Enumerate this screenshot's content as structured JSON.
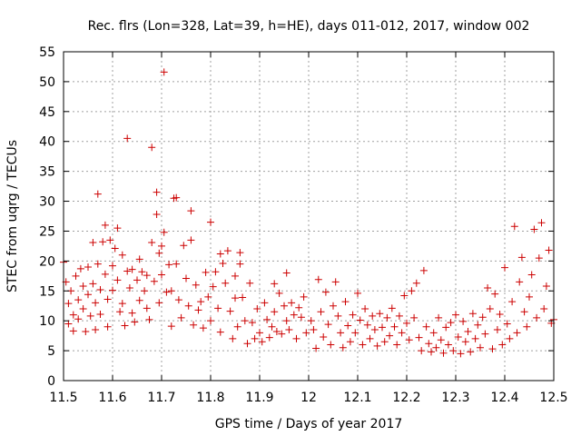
{
  "chart_data": {
    "type": "scatter",
    "title": "Rec. flrs (Lon=328, Lat=39, h=HE), days 011-012, 2017, window 002",
    "xlabel": "GPS time / Days of year 2017",
    "ylabel": "STEC from uqrg / TECUs",
    "xlim": [
      11.5,
      12.5
    ],
    "ylim": [
      0,
      55
    ],
    "xticks": [
      11.5,
      11.6,
      11.7,
      11.8,
      11.9,
      12.0,
      12.1,
      12.2,
      12.3,
      12.4,
      12.5
    ],
    "xtick_labels": [
      "11.5",
      "11.6",
      "11.7",
      "11.8",
      "11.9",
      "12",
      "12.1",
      "12.2",
      "12.3",
      "12.4",
      "12.5"
    ],
    "yticks": [
      0,
      5,
      10,
      15,
      20,
      25,
      30,
      35,
      40,
      45,
      50,
      55
    ],
    "ytick_labels": [
      "0",
      "5",
      "10",
      "15",
      "20",
      "25",
      "30",
      "35",
      "40",
      "45",
      "50",
      "55"
    ],
    "grid": true,
    "marker": "+",
    "series": [
      {
        "name": "STEC",
        "color": "#cc0000",
        "points": [
          [
            11.5,
            19.8
          ],
          [
            11.505,
            16.5
          ],
          [
            11.51,
            12.9
          ],
          [
            11.51,
            9.5
          ],
          [
            11.515,
            15.0
          ],
          [
            11.52,
            11.0
          ],
          [
            11.52,
            8.3
          ],
          [
            11.525,
            17.5
          ],
          [
            11.53,
            13.5
          ],
          [
            11.53,
            10.3
          ],
          [
            11.535,
            18.7
          ],
          [
            11.54,
            15.8
          ],
          [
            11.54,
            12.0
          ],
          [
            11.545,
            8.2
          ],
          [
            11.55,
            19.0
          ],
          [
            11.55,
            14.4
          ],
          [
            11.555,
            10.8
          ],
          [
            11.56,
            23.1
          ],
          [
            11.56,
            16.2
          ],
          [
            11.565,
            13.0
          ],
          [
            11.565,
            8.5
          ],
          [
            11.57,
            31.2
          ],
          [
            11.57,
            19.5
          ],
          [
            11.575,
            15.2
          ],
          [
            11.575,
            11.1
          ],
          [
            11.58,
            23.2
          ],
          [
            11.585,
            26.0
          ],
          [
            11.585,
            17.8
          ],
          [
            11.59,
            13.6
          ],
          [
            11.59,
            9.0
          ],
          [
            11.595,
            23.5
          ],
          [
            11.6,
            19.2
          ],
          [
            11.6,
            15.1
          ],
          [
            11.605,
            22.1
          ],
          [
            11.61,
            25.5
          ],
          [
            11.61,
            16.8
          ],
          [
            11.615,
            11.5
          ],
          [
            11.62,
            21.0
          ],
          [
            11.62,
            12.9
          ],
          [
            11.625,
            9.2
          ],
          [
            11.63,
            40.5
          ],
          [
            11.63,
            18.3
          ],
          [
            11.635,
            15.5
          ],
          [
            11.64,
            18.6
          ],
          [
            11.64,
            11.3
          ],
          [
            11.645,
            9.8
          ],
          [
            11.65,
            16.8
          ],
          [
            11.655,
            20.3
          ],
          [
            11.655,
            13.4
          ],
          [
            11.66,
            18.2
          ],
          [
            11.665,
            15.0
          ],
          [
            11.67,
            17.6
          ],
          [
            11.67,
            12.1
          ],
          [
            11.675,
            10.2
          ],
          [
            11.68,
            39.0
          ],
          [
            11.68,
            23.1
          ],
          [
            11.685,
            16.6
          ],
          [
            11.69,
            31.5
          ],
          [
            11.69,
            27.8
          ],
          [
            11.695,
            21.3
          ],
          [
            11.695,
            13.0
          ],
          [
            11.7,
            22.5
          ],
          [
            11.7,
            17.7
          ],
          [
            11.705,
            24.8
          ],
          [
            11.705,
            51.6
          ],
          [
            11.71,
            14.8
          ],
          [
            11.715,
            19.4
          ],
          [
            11.72,
            15.0
          ],
          [
            11.72,
            9.1
          ],
          [
            11.725,
            30.5
          ],
          [
            11.73,
            30.6
          ],
          [
            11.73,
            19.5
          ],
          [
            11.735,
            13.5
          ],
          [
            11.74,
            10.5
          ],
          [
            11.745,
            22.6
          ],
          [
            11.75,
            17.1
          ],
          [
            11.755,
            12.5
          ],
          [
            11.76,
            28.4
          ],
          [
            11.76,
            23.5
          ],
          [
            11.765,
            9.3
          ],
          [
            11.77,
            16.0
          ],
          [
            11.775,
            11.8
          ],
          [
            11.78,
            13.2
          ],
          [
            11.785,
            8.8
          ],
          [
            11.79,
            18.1
          ],
          [
            11.795,
            14.0
          ],
          [
            11.8,
            26.5
          ],
          [
            11.8,
            10.0
          ],
          [
            11.805,
            15.7
          ],
          [
            11.81,
            18.2
          ],
          [
            11.815,
            12.1
          ],
          [
            11.82,
            21.2
          ],
          [
            11.82,
            8.1
          ],
          [
            11.825,
            19.6
          ],
          [
            11.83,
            16.3
          ],
          [
            11.835,
            21.7
          ],
          [
            11.84,
            11.6
          ],
          [
            11.845,
            7.0
          ],
          [
            11.85,
            17.5
          ],
          [
            11.85,
            13.8
          ],
          [
            11.855,
            9.0
          ],
          [
            11.86,
            21.4
          ],
          [
            11.86,
            19.5
          ],
          [
            11.865,
            13.9
          ],
          [
            11.87,
            10.0
          ],
          [
            11.875,
            6.2
          ],
          [
            11.88,
            16.3
          ],
          [
            11.885,
            9.7
          ],
          [
            11.89,
            7.0
          ],
          [
            11.895,
            12.0
          ],
          [
            11.9,
            8.0
          ],
          [
            11.905,
            6.5
          ],
          [
            11.91,
            13.0
          ],
          [
            11.915,
            10.2
          ],
          [
            11.92,
            7.2
          ],
          [
            11.925,
            9.0
          ],
          [
            11.93,
            16.2
          ],
          [
            11.93,
            11.5
          ],
          [
            11.935,
            8.2
          ],
          [
            11.94,
            14.6
          ],
          [
            11.945,
            7.8
          ],
          [
            11.95,
            12.5
          ],
          [
            11.955,
            18.0
          ],
          [
            11.955,
            10.0
          ],
          [
            11.96,
            8.5
          ],
          [
            11.965,
            13.0
          ],
          [
            11.97,
            11.0
          ],
          [
            11.975,
            7.0
          ],
          [
            11.98,
            12.2
          ],
          [
            11.985,
            10.6
          ],
          [
            11.99,
            14.0
          ],
          [
            11.995,
            8.0
          ],
          [
            12.005,
            10.0
          ],
          [
            12.01,
            8.5
          ],
          [
            12.015,
            5.4
          ],
          [
            12.02,
            16.9
          ],
          [
            12.025,
            11.5
          ],
          [
            12.03,
            7.3
          ],
          [
            12.035,
            14.8
          ],
          [
            12.04,
            9.4
          ],
          [
            12.045,
            6.0
          ],
          [
            12.05,
            12.5
          ],
          [
            12.055,
            16.5
          ],
          [
            12.06,
            10.8
          ],
          [
            12.065,
            8.0
          ],
          [
            12.07,
            5.5
          ],
          [
            12.075,
            13.2
          ],
          [
            12.08,
            9.2
          ],
          [
            12.085,
            6.5
          ],
          [
            12.09,
            11.0
          ],
          [
            12.095,
            8.0
          ],
          [
            12.1,
            14.6
          ],
          [
            12.105,
            10.1
          ],
          [
            12.11,
            6.0
          ],
          [
            12.115,
            12.0
          ],
          [
            12.12,
            9.3
          ],
          [
            12.125,
            7.0
          ],
          [
            12.13,
            10.8
          ],
          [
            12.135,
            8.5
          ],
          [
            12.14,
            5.8
          ],
          [
            12.145,
            11.2
          ],
          [
            12.15,
            8.9
          ],
          [
            12.155,
            6.5
          ],
          [
            12.16,
            10.5
          ],
          [
            12.165,
            7.5
          ],
          [
            12.17,
            12.1
          ],
          [
            12.175,
            9.0
          ],
          [
            12.18,
            6.0
          ],
          [
            12.185,
            10.8
          ],
          [
            12.19,
            8.0
          ],
          [
            12.195,
            14.2
          ],
          [
            12.2,
            9.6
          ],
          [
            12.205,
            6.8
          ],
          [
            12.21,
            15.0
          ],
          [
            12.215,
            10.5
          ],
          [
            12.22,
            16.3
          ],
          [
            12.225,
            7.2
          ],
          [
            12.23,
            5.0
          ],
          [
            12.235,
            18.4
          ],
          [
            12.24,
            9.0
          ],
          [
            12.245,
            6.2
          ],
          [
            12.25,
            4.8
          ],
          [
            12.255,
            8.0
          ],
          [
            12.26,
            5.5
          ],
          [
            12.265,
            10.5
          ],
          [
            12.27,
            6.8
          ],
          [
            12.275,
            4.6
          ],
          [
            12.28,
            8.9
          ],
          [
            12.285,
            6.0
          ],
          [
            12.29,
            9.7
          ],
          [
            12.295,
            5.0
          ],
          [
            12.3,
            11.0
          ],
          [
            12.305,
            7.3
          ],
          [
            12.31,
            4.5
          ],
          [
            12.315,
            9.9
          ],
          [
            12.32,
            6.5
          ],
          [
            12.325,
            8.2
          ],
          [
            12.33,
            4.8
          ],
          [
            12.335,
            11.2
          ],
          [
            12.34,
            7.0
          ],
          [
            12.345,
            9.3
          ],
          [
            12.35,
            5.5
          ],
          [
            12.355,
            10.6
          ],
          [
            12.36,
            7.8
          ],
          [
            12.365,
            15.5
          ],
          [
            12.37,
            12.0
          ],
          [
            12.375,
            5.3
          ],
          [
            12.38,
            14.5
          ],
          [
            12.385,
            8.5
          ],
          [
            12.39,
            11.1
          ],
          [
            12.395,
            6.0
          ],
          [
            12.4,
            18.9
          ],
          [
            12.405,
            9.5
          ],
          [
            12.41,
            7.0
          ],
          [
            12.415,
            13.2
          ],
          [
            12.42,
            25.8
          ],
          [
            12.425,
            8.0
          ],
          [
            12.43,
            16.5
          ],
          [
            12.435,
            20.6
          ],
          [
            12.44,
            11.5
          ],
          [
            12.445,
            9.0
          ],
          [
            12.45,
            14.0
          ],
          [
            12.455,
            17.7
          ],
          [
            12.46,
            25.3
          ],
          [
            12.465,
            10.5
          ],
          [
            12.47,
            20.5
          ],
          [
            12.475,
            26.4
          ],
          [
            12.48,
            12.0
          ],
          [
            12.485,
            15.8
          ],
          [
            12.49,
            21.8
          ],
          [
            12.495,
            9.6
          ],
          [
            12.5,
            10.2
          ]
        ]
      }
    ]
  }
}
